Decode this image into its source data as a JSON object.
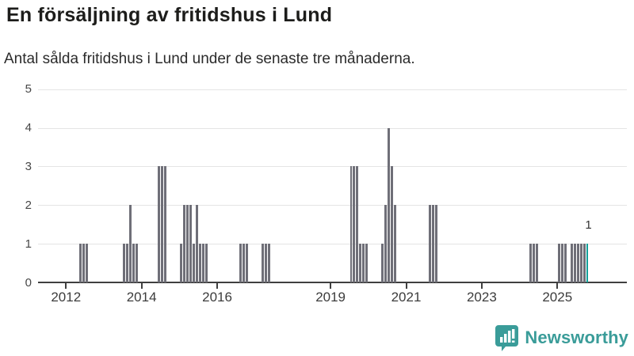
{
  "header": {
    "title": "En försäljning av fritidshus i Lund",
    "subtitle": "Antal sålda fritidshus i Lund under de senaste tre månaderna."
  },
  "chart_data": {
    "type": "bar",
    "title": "En försäljning av fritidshus i Lund",
    "subtitle": "Antal sålda fritidshus i Lund under de senaste tre månaderna.",
    "xlabel": "",
    "ylabel": "",
    "x_axis": {
      "kind": "monthly-time",
      "start_month": "2011-04",
      "end_month": "2026-10",
      "tick_years": [
        2012,
        2014,
        2016,
        2019,
        2021,
        2023,
        2025
      ]
    },
    "y_axis": {
      "min": 0,
      "max": 5,
      "ticks": [
        0,
        1,
        2,
        3,
        4,
        5
      ]
    },
    "grid": true,
    "legend": "none",
    "series": [
      {
        "month": "2012-05",
        "value": 1
      },
      {
        "month": "2012-06",
        "value": 1
      },
      {
        "month": "2012-07",
        "value": 1
      },
      {
        "month": "2013-07",
        "value": 1
      },
      {
        "month": "2013-08",
        "value": 1
      },
      {
        "month": "2013-09",
        "value": 2
      },
      {
        "month": "2013-10",
        "value": 1
      },
      {
        "month": "2013-11",
        "value": 1
      },
      {
        "month": "2014-06",
        "value": 3
      },
      {
        "month": "2014-07",
        "value": 3
      },
      {
        "month": "2014-08",
        "value": 3
      },
      {
        "month": "2015-01",
        "value": 1
      },
      {
        "month": "2015-02",
        "value": 2
      },
      {
        "month": "2015-03",
        "value": 2
      },
      {
        "month": "2015-04",
        "value": 2
      },
      {
        "month": "2015-05",
        "value": 1
      },
      {
        "month": "2015-06",
        "value": 2
      },
      {
        "month": "2015-07",
        "value": 1
      },
      {
        "month": "2015-08",
        "value": 1
      },
      {
        "month": "2015-09",
        "value": 1
      },
      {
        "month": "2016-08",
        "value": 1
      },
      {
        "month": "2016-09",
        "value": 1
      },
      {
        "month": "2016-10",
        "value": 1
      },
      {
        "month": "2017-03",
        "value": 1
      },
      {
        "month": "2017-04",
        "value": 1
      },
      {
        "month": "2017-05",
        "value": 1
      },
      {
        "month": "2019-07",
        "value": 3
      },
      {
        "month": "2019-08",
        "value": 3
      },
      {
        "month": "2019-09",
        "value": 3
      },
      {
        "month": "2019-10",
        "value": 1
      },
      {
        "month": "2019-11",
        "value": 1
      },
      {
        "month": "2019-12",
        "value": 1
      },
      {
        "month": "2020-05",
        "value": 1
      },
      {
        "month": "2020-06",
        "value": 2
      },
      {
        "month": "2020-07",
        "value": 4
      },
      {
        "month": "2020-08",
        "value": 3
      },
      {
        "month": "2020-09",
        "value": 2
      },
      {
        "month": "2021-08",
        "value": 2
      },
      {
        "month": "2021-09",
        "value": 2
      },
      {
        "month": "2021-10",
        "value": 2
      },
      {
        "month": "2024-04",
        "value": 1
      },
      {
        "month": "2024-05",
        "value": 1
      },
      {
        "month": "2024-06",
        "value": 1
      },
      {
        "month": "2025-01",
        "value": 1
      },
      {
        "month": "2025-02",
        "value": 1
      },
      {
        "month": "2025-03",
        "value": 1
      },
      {
        "month": "2025-05",
        "value": 1
      },
      {
        "month": "2025-06",
        "value": 1
      },
      {
        "month": "2025-07",
        "value": 1
      },
      {
        "month": "2025-08",
        "value": 1
      },
      {
        "month": "2025-09",
        "value": 1
      },
      {
        "month": "2025-10",
        "value": 1
      }
    ],
    "highlight_month": "2025-10",
    "annotation": {
      "month": "2025-10",
      "text": "1"
    }
  },
  "colors": {
    "background": "#ffffff",
    "bar": "#6f6f78",
    "highlight": "#12a19a",
    "grid": "#e4e4e4",
    "axis": "#3f3f3f",
    "title_text": "#1d1d1b",
    "subtitle_text": "#2b2b2b",
    "y_tick_text": "#474747",
    "x_tick_text": "#3c3c3c",
    "annotation_text": "#333333",
    "logo": "#3a9c99"
  },
  "footer": {
    "logo_text": "Newsworthy",
    "logo_icon": "bar-chart-speech-bubble"
  }
}
